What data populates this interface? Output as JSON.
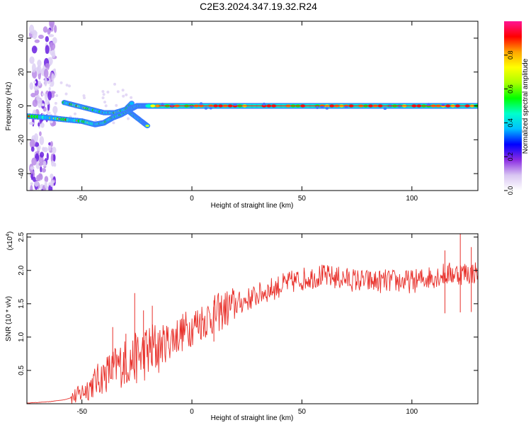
{
  "title": "C2E3.2024.347.19.32.R24",
  "chart_data": [
    {
      "type": "heatmap",
      "panel": "spectrogram",
      "xlabel": "Height of straight line (km)",
      "ylabel": "Frequency (Hz)",
      "xlim": [
        -75,
        130
      ],
      "ylim": [
        -50,
        50
      ],
      "x_ticks": [
        -50,
        0,
        50,
        100
      ],
      "x_tick_labels": [
        "-50",
        "0",
        "50",
        "100"
      ],
      "y_ticks": [
        -40,
        -20,
        0,
        20,
        40
      ],
      "y_tick_labels": [
        "-40",
        "-20",
        "0",
        "20",
        "40"
      ],
      "colorbar": {
        "label": "Normalized spectral amplitude",
        "range": [
          0,
          1
        ],
        "ticks": [
          0,
          0.2,
          0.4,
          0.6,
          0.8
        ],
        "tick_labels": [
          "0.0",
          "0.2",
          "0.4",
          "0.6",
          "0.8"
        ],
        "colormap": [
          "#ffffff",
          "#d9c6f2",
          "#8a2be2",
          "#0000ff",
          "#00bfff",
          "#00ffcc",
          "#00ff00",
          "#aaff00",
          "#ffff00",
          "#ffa500",
          "#ff0000",
          "#ff1493"
        ]
      },
      "signal_trace": {
        "description_free": true,
        "main_line": {
          "x_start": -20,
          "x_end": 130,
          "frequency": 0
        },
        "branch_points": [
          {
            "x": -75,
            "f": -6
          },
          {
            "x": -65,
            "f": -7
          },
          {
            "x": -58,
            "f": -8
          },
          {
            "x": -50,
            "f": -9
          },
          {
            "x": -44,
            "f": -11
          },
          {
            "x": -40,
            "f": -10
          },
          {
            "x": -36,
            "f": -7
          },
          {
            "x": -32,
            "f": -5
          },
          {
            "x": -28,
            "f": -2
          },
          {
            "x": -25,
            "f": 0
          },
          {
            "x": -22,
            "f": 0
          },
          {
            "x": -20,
            "f": 0
          }
        ],
        "upper_branch_points": [
          {
            "x": -58,
            "f": 2
          },
          {
            "x": -52,
            "f": 0
          },
          {
            "x": -46,
            "f": -2
          },
          {
            "x": -40,
            "f": -4
          },
          {
            "x": -35,
            "f": -4
          },
          {
            "x": -30,
            "f": -2
          },
          {
            "x": -27,
            "f": 2
          }
        ],
        "lower_tail_points": [
          {
            "x": -28,
            "f": -4
          },
          {
            "x": -25,
            "f": -7
          },
          {
            "x": -22,
            "f": -10
          },
          {
            "x": -20,
            "f": -12
          }
        ],
        "noise_column_x": [
          -73,
          -62
        ]
      }
    },
    {
      "type": "line",
      "panel": "snr",
      "xlabel": "Height of straight line (km)",
      "ylabel": "SNR (10 * v/v)",
      "y_multiplier_label": "(x10",
      "y_multiplier_exp": "4",
      "y_multiplier_close": ")",
      "xlim": [
        -75,
        130
      ],
      "ylim": [
        0,
        2.55
      ],
      "x_ticks": [
        -50,
        0,
        50,
        100
      ],
      "x_tick_labels": [
        "-50",
        "0",
        "50",
        "100"
      ],
      "y_ticks": [
        0.5,
        1.0,
        1.5,
        2.0,
        2.5
      ],
      "y_tick_labels": [
        "0.5",
        "1.0",
        "1.5",
        "2.0",
        "2.5"
      ],
      "series": [
        {
          "color": "#e8302a",
          "trend": [
            [
              -75,
              0.01
            ],
            [
              -65,
              0.03
            ],
            [
              -58,
              0.06
            ],
            [
              -52,
              0.12
            ],
            [
              -47,
              0.25
            ],
            [
              -42,
              0.38
            ],
            [
              -37,
              0.5
            ],
            [
              -32,
              0.6
            ],
            [
              -27,
              0.65
            ],
            [
              -22,
              0.75
            ],
            [
              -17,
              0.82
            ],
            [
              -12,
              0.92
            ],
            [
              -7,
              1.02
            ],
            [
              -2,
              1.12
            ],
            [
              3,
              1.22
            ],
            [
              8,
              1.3
            ],
            [
              13,
              1.38
            ],
            [
              18,
              1.46
            ],
            [
              23,
              1.53
            ],
            [
              28,
              1.6
            ],
            [
              33,
              1.68
            ],
            [
              38,
              1.74
            ],
            [
              43,
              1.8
            ],
            [
              48,
              1.85
            ],
            [
              53,
              1.89
            ],
            [
              58,
              1.92
            ],
            [
              63,
              1.9
            ],
            [
              68,
              1.88
            ],
            [
              73,
              1.86
            ],
            [
              78,
              1.84
            ],
            [
              83,
              1.83
            ],
            [
              88,
              1.84
            ],
            [
              93,
              1.84
            ],
            [
              98,
              1.83
            ],
            [
              103,
              1.85
            ],
            [
              108,
              1.9
            ],
            [
              113,
              1.93
            ],
            [
              118,
              1.95
            ],
            [
              123,
              1.96
            ],
            [
              130,
              1.97
            ]
          ],
          "spikes": [
            {
              "x": -26,
              "y": 1.66
            },
            {
              "x": -36,
              "y": 1.15
            },
            {
              "x": -22,
              "y": 1.4
            },
            {
              "x": -18,
              "y": 1.47
            },
            {
              "x": -30,
              "y": 1.05
            },
            {
              "x": 122,
              "y": 2.55
            },
            {
              "x": 115,
              "y": 2.3
            },
            {
              "x": 127,
              "y": 2.35
            },
            {
              "x": 10,
              "y": 1.55
            }
          ]
        }
      ]
    }
  ]
}
